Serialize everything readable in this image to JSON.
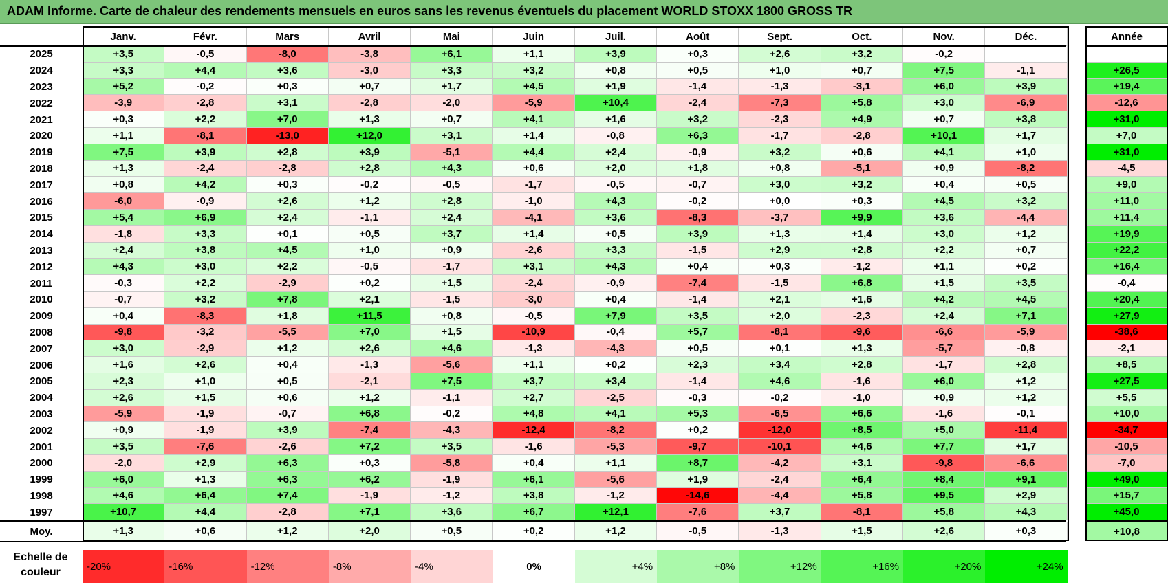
{
  "title": "ADAM Informe. Carte de chaleur des rendements mensuels en euros sans les revenus éventuels du placement WORLD STOXX 1800 GROSS TR",
  "chart_data": {
    "type": "heatmap",
    "title": "ADAM Informe. Carte de chaleur des rendements mensuels en euros sans les revenus éventuels du placement WORLD STOXX 1800 GROSS TR",
    "columns": [
      "Janv.",
      "Févr.",
      "Mars",
      "Avril",
      "Mai",
      "Juin",
      "Juil.",
      "Août",
      "Sept.",
      "Oct.",
      "Nov.",
      "Déc."
    ],
    "annual_label": "Année",
    "avg_label": "Moy.",
    "rows": [
      {
        "year": "2025",
        "months": [
          "+3,5",
          "-0,5",
          "-8,0",
          "-3,8",
          "+6,1",
          "+1,1",
          "+3,9",
          "+0,3",
          "+2,6",
          "+3,2",
          "-0,2",
          ""
        ],
        "annual": ""
      },
      {
        "year": "2024",
        "months": [
          "+3,3",
          "+4,4",
          "+3,6",
          "-3,0",
          "+3,3",
          "+3,2",
          "+0,8",
          "+0,5",
          "+1,0",
          "+0,7",
          "+7,5",
          "-1,1"
        ],
        "annual": "+26,5"
      },
      {
        "year": "2023",
        "months": [
          "+5,2",
          "-0,2",
          "+0,3",
          "+0,7",
          "+1,7",
          "+4,5",
          "+1,9",
          "-1,4",
          "-1,3",
          "-3,1",
          "+6,0",
          "+3,9"
        ],
        "annual": "+19,4"
      },
      {
        "year": "2022",
        "months": [
          "-3,9",
          "-2,8",
          "+3,1",
          "-2,8",
          "-2,0",
          "-5,9",
          "+10,4",
          "-2,4",
          "-7,3",
          "+5,8",
          "+3,0",
          "-6,9"
        ],
        "annual": "-12,6"
      },
      {
        "year": "2021",
        "months": [
          "+0,3",
          "+2,2",
          "+7,0",
          "+1,3",
          "+0,7",
          "+4,1",
          "+1,6",
          "+3,2",
          "-2,3",
          "+4,9",
          "+0,7",
          "+3,8"
        ],
        "annual": "+31,0"
      },
      {
        "year": "2020",
        "months": [
          "+1,1",
          "-8,1",
          "-13,0",
          "+12,0",
          "+3,1",
          "+1,4",
          "-0,8",
          "+6,3",
          "-1,7",
          "-2,8",
          "+10,1",
          "+1,7"
        ],
        "annual": "+7,0"
      },
      {
        "year": "2019",
        "months": [
          "+7,5",
          "+3,9",
          "+2,8",
          "+3,9",
          "-5,1",
          "+4,4",
          "+2,4",
          "-0,9",
          "+3,2",
          "+0,6",
          "+4,1",
          "+1,0"
        ],
        "annual": "+31,0"
      },
      {
        "year": "2018",
        "months": [
          "+1,3",
          "-2,4",
          "-2,8",
          "+2,8",
          "+4,3",
          "+0,6",
          "+2,0",
          "+1,8",
          "+0,8",
          "-5,1",
          "+0,9",
          "-8,2"
        ],
        "annual": "-4,5"
      },
      {
        "year": "2017",
        "months": [
          "+0,8",
          "+4,2",
          "+0,3",
          "-0,2",
          "-0,5",
          "-1,7",
          "-0,5",
          "-0,7",
          "+3,0",
          "+3,2",
          "+0,4",
          "+0,5"
        ],
        "annual": "+9,0"
      },
      {
        "year": "2016",
        "months": [
          "-6,0",
          "-0,9",
          "+2,6",
          "+1,2",
          "+2,8",
          "-1,0",
          "+4,3",
          "-0,2",
          "+0,0",
          "+0,3",
          "+4,5",
          "+3,2"
        ],
        "annual": "+11,0"
      },
      {
        "year": "2015",
        "months": [
          "+5,4",
          "+6,9",
          "+2,4",
          "-1,1",
          "+2,4",
          "-4,1",
          "+3,6",
          "-8,3",
          "-3,7",
          "+9,9",
          "+3,6",
          "-4,4"
        ],
        "annual": "+11,4"
      },
      {
        "year": "2014",
        "months": [
          "-1,8",
          "+3,3",
          "+0,1",
          "+0,5",
          "+3,7",
          "+1,4",
          "+0,5",
          "+3,9",
          "+1,3",
          "+1,4",
          "+3,0",
          "+1,2"
        ],
        "annual": "+19,9"
      },
      {
        "year": "2013",
        "months": [
          "+2,4",
          "+3,8",
          "+4,5",
          "+1,0",
          "+0,9",
          "-2,6",
          "+3,3",
          "-1,5",
          "+2,9",
          "+2,8",
          "+2,2",
          "+0,7"
        ],
        "annual": "+22,2"
      },
      {
        "year": "2012",
        "months": [
          "+4,3",
          "+3,0",
          "+2,2",
          "-0,5",
          "-1,7",
          "+3,1",
          "+4,3",
          "+0,4",
          "+0,3",
          "-1,2",
          "+1,1",
          "+0,2"
        ],
        "annual": "+16,4"
      },
      {
        "year": "2011",
        "months": [
          "-0,3",
          "+2,2",
          "-2,9",
          "+0,2",
          "+1,5",
          "-2,4",
          "-0,9",
          "-7,4",
          "-1,5",
          "+6,8",
          "+1,5",
          "+3,5"
        ],
        "annual": "-0,4"
      },
      {
        "year": "2010",
        "months": [
          "-0,7",
          "+3,2",
          "+7,8",
          "+2,1",
          "-1,5",
          "-3,0",
          "+0,4",
          "-1,4",
          "+2,1",
          "+1,6",
          "+4,2",
          "+4,5"
        ],
        "annual": "+20,4"
      },
      {
        "year": "2009",
        "months": [
          "+0,4",
          "-8,3",
          "+1,8",
          "+11,5",
          "+0,8",
          "-0,5",
          "+7,9",
          "+3,5",
          "+2,0",
          "-2,3",
          "+2,4",
          "+7,1"
        ],
        "annual": "+27,9"
      },
      {
        "year": "2008",
        "months": [
          "-9,8",
          "-3,2",
          "-5,5",
          "+7,0",
          "+1,5",
          "-10,9",
          "-0,4",
          "+5,7",
          "-8,1",
          "-9,6",
          "-6,6",
          "-5,9"
        ],
        "annual": "-38,6"
      },
      {
        "year": "2007",
        "months": [
          "+3,0",
          "-2,9",
          "+1,2",
          "+2,6",
          "+4,6",
          "-1,3",
          "-4,3",
          "+0,5",
          "+0,1",
          "+1,3",
          "-5,7",
          "-0,8"
        ],
        "annual": "-2,1"
      },
      {
        "year": "2006",
        "months": [
          "+1,6",
          "+2,6",
          "+0,4",
          "-1,3",
          "-5,6",
          "+1,1",
          "+0,2",
          "+2,3",
          "+3,4",
          "+2,8",
          "-1,7",
          "+2,8"
        ],
        "annual": "+8,5"
      },
      {
        "year": "2005",
        "months": [
          "+2,3",
          "+1,0",
          "+0,5",
          "-2,1",
          "+7,5",
          "+3,7",
          "+3,4",
          "-1,4",
          "+4,6",
          "-1,6",
          "+6,0",
          "+1,2"
        ],
        "annual": "+27,5"
      },
      {
        "year": "2004",
        "months": [
          "+2,6",
          "+1,5",
          "+0,6",
          "+1,2",
          "-1,1",
          "+2,7",
          "-2,5",
          "-0,3",
          "-0,2",
          "-1,0",
          "+0,9",
          "+1,2"
        ],
        "annual": "+5,5"
      },
      {
        "year": "2003",
        "months": [
          "-5,9",
          "-1,9",
          "-0,7",
          "+6,8",
          "-0,2",
          "+4,8",
          "+4,1",
          "+5,3",
          "-6,5",
          "+6,6",
          "-1,6",
          "-0,1"
        ],
        "annual": "+10,0"
      },
      {
        "year": "2002",
        "months": [
          "+0,9",
          "-1,9",
          "+3,9",
          "-7,4",
          "-4,3",
          "-12,4",
          "-8,2",
          "+0,2",
          "-12,0",
          "+8,5",
          "+5,0",
          "-11,4"
        ],
        "annual": "-34,7"
      },
      {
        "year": "2001",
        "months": [
          "+3,5",
          "-7,6",
          "-2,6",
          "+7,2",
          "+3,5",
          "-1,6",
          "-5,3",
          "-9,7",
          "-10,1",
          "+4,6",
          "+7,7",
          "+1,7"
        ],
        "annual": "-10,5"
      },
      {
        "year": "2000",
        "months": [
          "-2,0",
          "+2,9",
          "+6,3",
          "+0,3",
          "-5,8",
          "+0,4",
          "+1,1",
          "+8,7",
          "-4,2",
          "+3,1",
          "-9,8",
          "-6,6"
        ],
        "annual": "-7,0"
      },
      {
        "year": "1999",
        "months": [
          "+6,0",
          "+1,3",
          "+6,3",
          "+6,2",
          "-1,9",
          "+6,1",
          "-5,6",
          "+1,9",
          "-2,4",
          "+6,4",
          "+8,4",
          "+9,1"
        ],
        "annual": "+49,0"
      },
      {
        "year": "1998",
        "months": [
          "+4,6",
          "+6,4",
          "+7,4",
          "-1,9",
          "-1,2",
          "+3,8",
          "-1,2",
          "-14,6",
          "-4,4",
          "+5,8",
          "+9,5",
          "+2,9"
        ],
        "annual": "+15,7"
      },
      {
        "year": "1997",
        "months": [
          "+10,7",
          "+4,4",
          "-2,8",
          "+7,1",
          "+3,6",
          "+6,7",
          "+12,1",
          "-7,6",
          "+3,7",
          "-8,1",
          "+5,8",
          "+4,3"
        ],
        "annual": "+45,0"
      }
    ],
    "average": {
      "months": [
        "+1,3",
        "+0,6",
        "+1,2",
        "+2,0",
        "+0,5",
        "+0,2",
        "+1,2",
        "-0,5",
        "-1,3",
        "+1,5",
        "+2,6",
        "+0,3"
      ],
      "annual": "+10,8"
    },
    "color_scale": {
      "label": "Echelle de couleur",
      "stops": [
        "-20%",
        "-16%",
        "-12%",
        "-8%",
        "-4%",
        "0%",
        "+4%",
        "+8%",
        "+12%",
        "+16%",
        "+20%",
        "+24%"
      ],
      "colors": {
        "negative": "#ff0000",
        "zero": "#ffffff",
        "positive": "#00ee00"
      }
    }
  }
}
